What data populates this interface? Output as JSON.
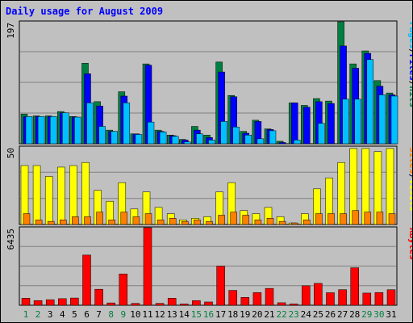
{
  "chart_data": [
    {
      "type": "bar",
      "title": "Daily usage for August 2009",
      "panel": "hits-files-pages",
      "ylim": [
        0,
        197
      ],
      "y_tick_label": "197",
      "categories": [
        "1",
        "2",
        "3",
        "4",
        "5",
        "6",
        "7",
        "8",
        "9",
        "10",
        "11",
        "12",
        "13",
        "14",
        "15",
        "16",
        "17",
        "18",
        "19",
        "20",
        "21",
        "22",
        "23",
        "24",
        "25",
        "26",
        "27",
        "28",
        "29",
        "30",
        "31"
      ],
      "weekend_days": [
        "1",
        "2",
        "8",
        "9",
        "15",
        "16",
        "22",
        "23",
        "29",
        "30"
      ],
      "series": [
        {
          "name": "Hits",
          "color": "#008040",
          "values": [
            48,
            45,
            45,
            52,
            44,
            130,
            68,
            22,
            84,
            16,
            129,
            22,
            14,
            7,
            28,
            14,
            132,
            78,
            20,
            38,
            24,
            4,
            66,
            62,
            73,
            69,
            197,
            129,
            150,
            102,
            82
          ]
        },
        {
          "name": "Files",
          "color": "#0000ff",
          "values": [
            44,
            44,
            44,
            50,
            43,
            113,
            61,
            20,
            77,
            16,
            127,
            20,
            13,
            6,
            22,
            10,
            116,
            76,
            17,
            36,
            23,
            2,
            66,
            59,
            68,
            65,
            158,
            122,
            146,
            93,
            79
          ]
        },
        {
          "name": "Pages",
          "color": "#00c0ff",
          "values": [
            44,
            44,
            44,
            50,
            43,
            66,
            28,
            20,
            66,
            15,
            35,
            19,
            12,
            3,
            16,
            6,
            36,
            27,
            14,
            8,
            21,
            0,
            6,
            0,
            33,
            0,
            72,
            72,
            136,
            79,
            77
          ]
        }
      ],
      "legend": [
        {
          "label": "Pages",
          "color": "#00c0ff"
        },
        {
          "label": "/",
          "color": "#000000"
        },
        {
          "label": "Files",
          "color": "#0000ff"
        },
        {
          "label": "/",
          "color": "#000000"
        },
        {
          "label": "Hits",
          "color": "#008040"
        }
      ]
    },
    {
      "type": "bar",
      "panel": "visits-sites",
      "ylim": [
        0,
        50
      ],
      "y_tick_label": "50",
      "series": [
        {
          "name": "Visits",
          "color": "#ffff00",
          "values": [
            38,
            38,
            31,
            37,
            38,
            40,
            22,
            15,
            27,
            10,
            21,
            11,
            7,
            3,
            4,
            5,
            21,
            27,
            9,
            7,
            11,
            5,
            1,
            7,
            23,
            30,
            40,
            49,
            49,
            47,
            49
          ]
        },
        {
          "name": "Sites",
          "color": "#ff8000",
          "values": [
            7,
            3,
            2,
            3,
            5,
            5,
            8,
            3,
            8,
            5,
            7,
            3,
            4,
            2,
            3,
            2,
            6,
            8,
            6,
            3,
            4,
            2,
            1,
            3,
            7,
            7,
            7,
            9,
            8,
            8,
            7
          ]
        }
      ],
      "legend": [
        {
          "label": "Sites",
          "color": "#ff8000"
        },
        {
          "label": "/",
          "color": "#000000"
        },
        {
          "label": "Visits",
          "color": "#ffff00"
        }
      ]
    },
    {
      "type": "bar",
      "panel": "kbytes",
      "ylim": [
        0,
        6435
      ],
      "y_tick_label": "6435",
      "series": [
        {
          "name": "KBytes",
          "color": "#ff0000",
          "values": [
            579,
            386,
            459,
            546,
            599,
            4166,
            1329,
            193,
            2598,
            153,
            6435,
            156,
            579,
            104,
            386,
            271,
            3248,
            1235,
            653,
            1049,
            1398,
            207,
            108,
            1618,
            1815,
            1040,
            1295,
            3112,
            1011,
            1052,
            1291
          ]
        }
      ],
      "legend": [
        {
          "label": "KBytes",
          "color": "#ff0000"
        }
      ]
    }
  ],
  "colors": {
    "background": "#c0c0c0",
    "plot_background": "#c0c0c0",
    "border": "#000000",
    "title": "#0000ff",
    "weekday_label": "#000000",
    "weekend_label": "#008040",
    "gridline": "#808080"
  }
}
